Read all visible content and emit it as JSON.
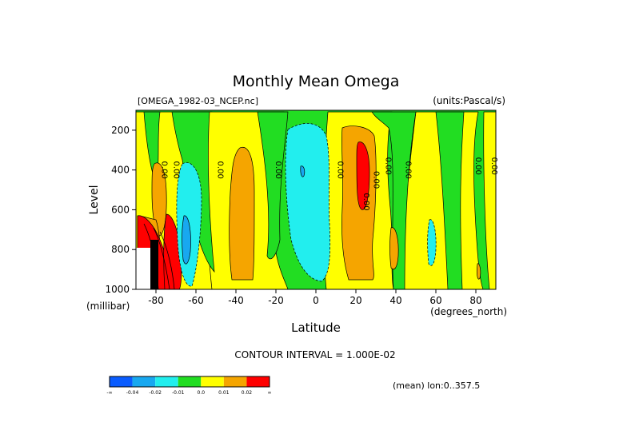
{
  "chart_data": {
    "type": "heatmap",
    "title": "Monthly Mean Omega",
    "source_label": "[OMEGA_1982-03_NCEP.nc]",
    "units_label": "(units:Pascal/s)",
    "xlabel": "Latitude",
    "ylabel": "Level",
    "x_unit": "(degrees_north)",
    "y_unit": "(millibar)",
    "x_ticks": [
      "-80",
      "-60",
      "-40",
      "-20",
      "0",
      "20",
      "40",
      "60",
      "80"
    ],
    "y_ticks": [
      "200",
      "400",
      "600",
      "800",
      "1000"
    ],
    "xlim": [
      -90,
      90
    ],
    "ylim": [
      1000,
      100
    ],
    "contour_interval_text": "CONTOUR INTERVAL = 1.000E-02",
    "mean_text": "(mean) lon:0..357.5",
    "contour_labels": [
      "0.00",
      "0.00",
      "0.00",
      "0.00",
      "0.00",
      "0.00",
      "0.00",
      "0.00",
      "0.00",
      "0.00",
      "0.00"
    ],
    "colorbar": {
      "labels": [
        "-∞",
        "-0.04",
        "-0.02",
        "-0.01",
        "0.0",
        "0.01",
        "0.02",
        "∞"
      ],
      "colors": [
        "#0a5cff",
        "#18a8f0",
        "#22eeee",
        "#22dd22",
        "#ffff00",
        "#f5a500",
        "#ff0000"
      ]
    },
    "regions": [
      {
        "value": "0.0 to 0.01",
        "color": "#ffff00",
        "lat": [
          -85,
          -70
        ],
        "lev": [
          150,
          950
        ]
      },
      {
        "value": "0.01 to 0.02",
        "color": "#f5a500",
        "lat": [
          -79,
          -75
        ],
        "lev": [
          350,
          700
        ]
      },
      {
        "value": "-0.02 to -0.01",
        "color": "#22eeee",
        "lat": [
          -71,
          -60
        ],
        "lev": [
          350,
          980
        ]
      },
      {
        "value": "-0.04 to -0.02",
        "color": "#18a8f0",
        "lat": [
          -68,
          -63
        ],
        "lev": [
          620,
          850
        ]
      },
      {
        "value": "> 0.02",
        "color": "#ff0000",
        "lat": [
          -84,
          -70
        ],
        "lev": [
          620,
          1000
        ]
      },
      {
        "value": "0.01 to 0.02",
        "color": "#f5a500",
        "lat": [
          -44,
          -31
        ],
        "lev": [
          300,
          980
        ]
      },
      {
        "value": "-0.01 to 0.0",
        "color": "#22dd22",
        "lat": [
          -58,
          -48
        ],
        "lev": [
          150,
          850
        ]
      },
      {
        "value": "-0.02 to -0.01",
        "color": "#22eeee",
        "lat": [
          -15,
          9
        ],
        "lev": [
          180,
          980
        ]
      },
      {
        "value": "-0.04 to -0.02",
        "color": "#18a8f0",
        "lat": [
          -8,
          -6
        ],
        "lev": [
          380,
          450
        ]
      },
      {
        "value": "0.01 to 0.02",
        "color": "#f5a500",
        "lat": [
          14,
          32
        ],
        "lev": [
          180,
          950
        ]
      },
      {
        "value": "> 0.02",
        "color": "#ff0000",
        "lat": [
          23,
          28
        ],
        "lev": [
          270,
          620
        ]
      },
      {
        "value": "-0.01 to 0.0",
        "color": "#22dd22",
        "lat": [
          36,
          49
        ],
        "lev": [
          150,
          700
        ]
      },
      {
        "value": "0.01 to 0.02",
        "color": "#f5a500",
        "lat": [
          39,
          42
        ],
        "lev": [
          650,
          930
        ]
      },
      {
        "value": "-0.02 to -0.01",
        "color": "#22eeee",
        "lat": [
          55,
          58
        ],
        "lev": [
          650,
          900
        ]
      },
      {
        "value": "-0.01 to 0.0",
        "color": "#22dd22",
        "lat": [
          61,
          70
        ],
        "lev": [
          150,
          1000
        ]
      },
      {
        "value": "0.01 to 0.02",
        "color": "#f5a500",
        "lat": [
          84,
          86
        ],
        "lev": [
          880,
          960
        ]
      }
    ]
  }
}
